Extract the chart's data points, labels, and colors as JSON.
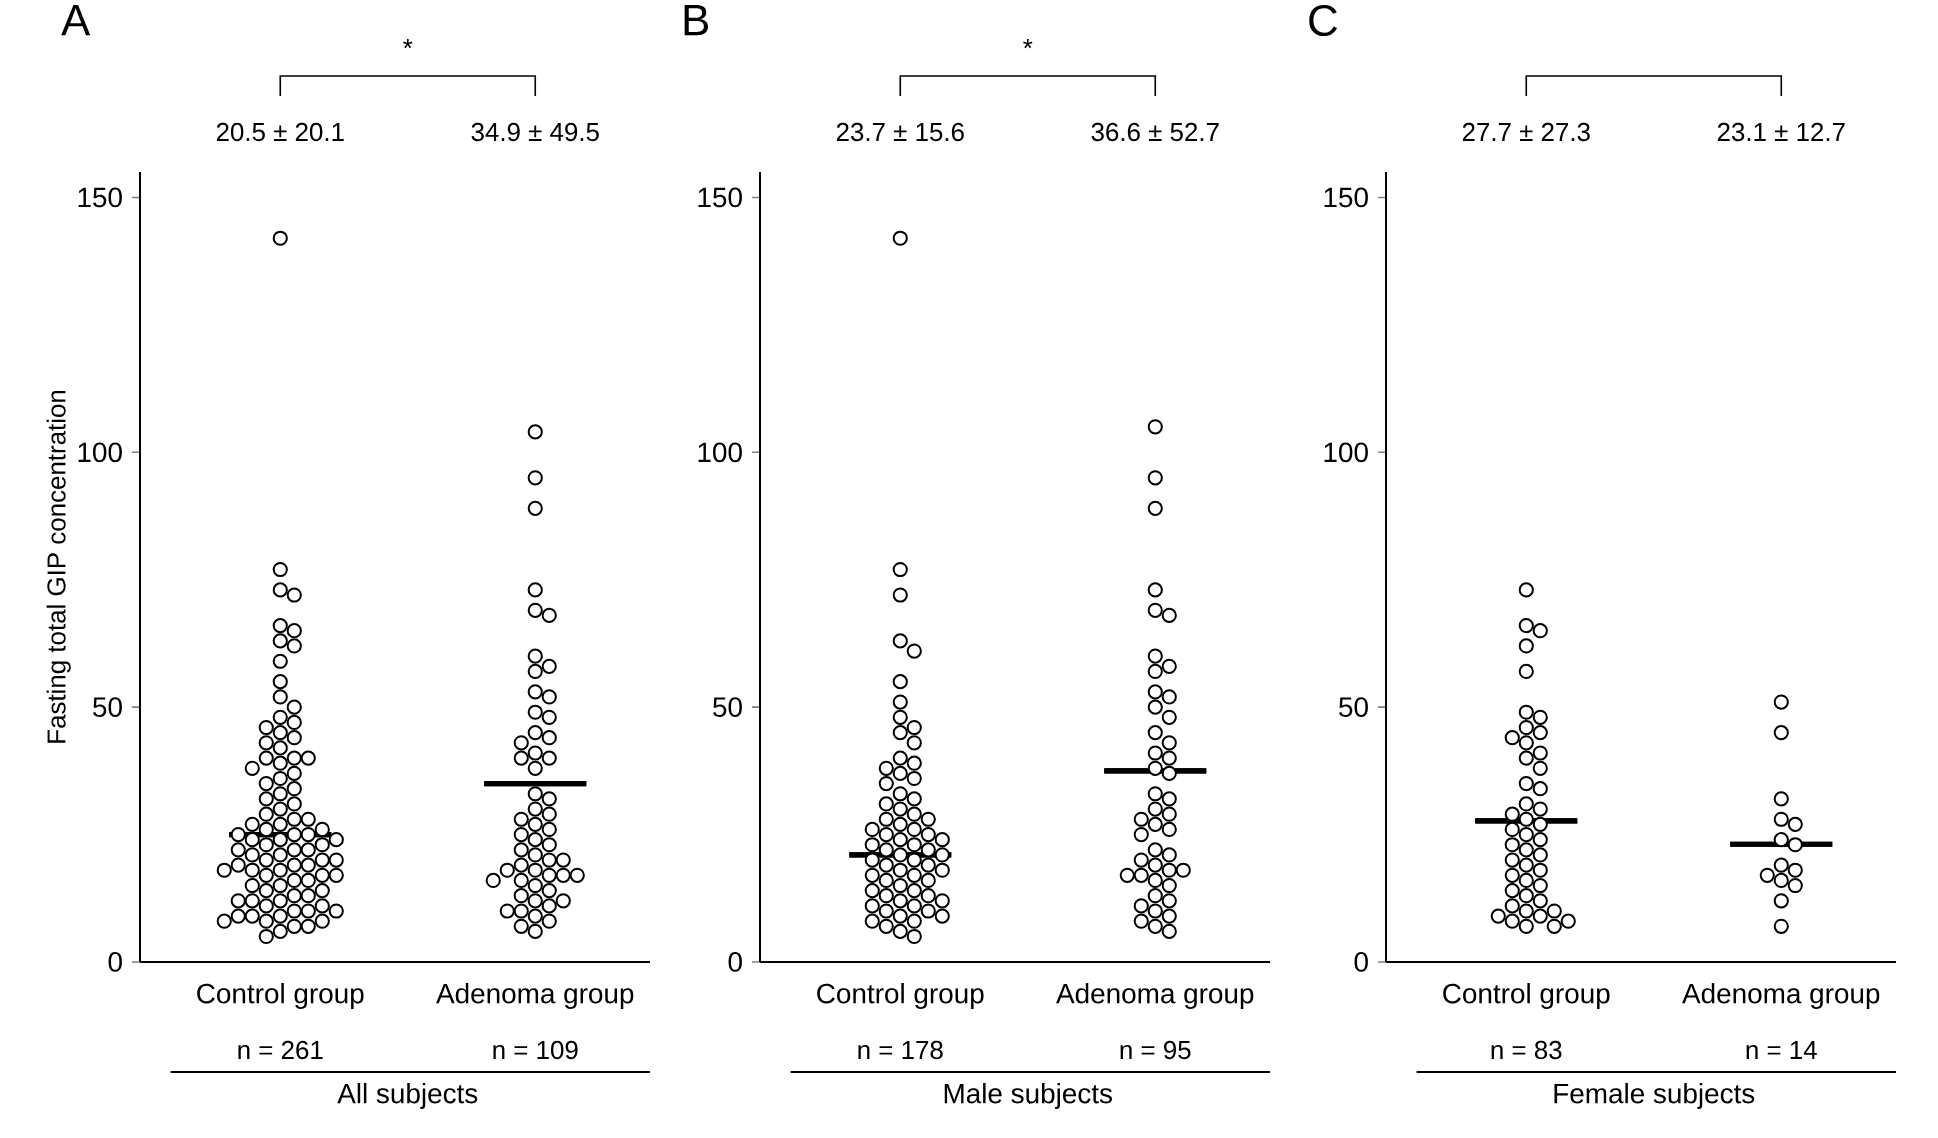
{
  "chart_data": [
    {
      "type": "scatter",
      "ylabel": "Fasting total GIP concentration",
      "categories": [
        "Control group",
        "Adenoma group"
      ],
      "ylim": [
        0,
        155
      ],
      "yticks": [
        0,
        50,
        100,
        150
      ],
      "marker": "circle",
      "annotations": [
        "A",
        "20.5 ± 20.1",
        "34.9 ± 49.5",
        "n = 261",
        "n = 109",
        "All subjects",
        "*"
      ],
      "series": [
        {
          "type": "scatter",
          "color": "#000000",
          "x": [
            "Control group",
            "Control group",
            "Control group",
            "Control group",
            "Control group",
            "Control group",
            "Control group",
            "Control group",
            "Control group",
            "Control group",
            "Control group",
            "Control group",
            "Control group",
            "Control group",
            "Control group",
            "Control group",
            "Control group",
            "Control group",
            "Control group",
            "Control group",
            "Control group",
            "Control group",
            "Control group",
            "Control group",
            "Control group",
            "Control group",
            "Control group",
            "Control group",
            "Control group",
            "Control group",
            "Control group",
            "Control group",
            "Control group",
            "Control group",
            "Control group",
            "Control group",
            "Control group",
            "Control group",
            "Control group",
            "Control group",
            "Control group",
            "Control group",
            "Control group",
            "Control group",
            "Control group",
            "Control group",
            "Control group",
            "Control group",
            "Control group",
            "Control group",
            "Control group",
            "Control group",
            "Control group",
            "Control group",
            "Control group",
            "Control group",
            "Control group",
            "Control group",
            "Control group",
            "Control group",
            "Control group",
            "Control group",
            "Control group",
            "Control group",
            "Control group",
            "Control group",
            "Control group",
            "Control group",
            "Control group",
            "Control group",
            "Control group",
            "Control group",
            "Control group",
            "Control group",
            "Control group",
            "Control group",
            "Control group",
            "Control group",
            "Control group",
            "Control group",
            "Control group",
            "Control group",
            "Control group",
            "Control group",
            "Control group",
            "Control group",
            "Control group",
            "Control group",
            "Control group",
            "Control group",
            "Adenoma group",
            "Adenoma group",
            "Adenoma group",
            "Adenoma group",
            "Adenoma group",
            "Adenoma group",
            "Adenoma group",
            "Adenoma group",
            "Adenoma group",
            "Adenoma group",
            "Adenoma group",
            "Adenoma group",
            "Adenoma group",
            "Adenoma group",
            "Adenoma group",
            "Adenoma group",
            "Adenoma group",
            "Adenoma group",
            "Adenoma group",
            "Adenoma group",
            "Adenoma group",
            "Adenoma group",
            "Adenoma group",
            "Adenoma group",
            "Adenoma group",
            "Adenoma group",
            "Adenoma group",
            "Adenoma group",
            "Adenoma group",
            "Adenoma group",
            "Adenoma group",
            "Adenoma group",
            "Adenoma group",
            "Adenoma group",
            "Adenoma group",
            "Adenoma group",
            "Adenoma group",
            "Adenoma group",
            "Adenoma group",
            "Adenoma group",
            "Adenoma group",
            "Adenoma group",
            "Adenoma group",
            "Adenoma group",
            "Adenoma group",
            "Adenoma group",
            "Adenoma group",
            "Adenoma group",
            "Adenoma group",
            "Adenoma group",
            "Adenoma group",
            "Adenoma group",
            "Adenoma group",
            "Adenoma group"
          ],
          "values": [
            142,
            77,
            73,
            72,
            66,
            65,
            63,
            62,
            59,
            55,
            52,
            50,
            48,
            47,
            46,
            45,
            44,
            43,
            42,
            40,
            40,
            40,
            39,
            38,
            37,
            36,
            35,
            34,
            33,
            32,
            31,
            30,
            29,
            28,
            28,
            27,
            27,
            26,
            26,
            25,
            25,
            25,
            24,
            24,
            24,
            23,
            23,
            22,
            22,
            22,
            21,
            21,
            20,
            20,
            20,
            19,
            19,
            19,
            18,
            18,
            18,
            17,
            17,
            17,
            16,
            16,
            15,
            15,
            14,
            14,
            13,
            13,
            12,
            12,
            12,
            11,
            11,
            10,
            10,
            10,
            9,
            9,
            9,
            8,
            8,
            8,
            7,
            7,
            6,
            5,
            104,
            95,
            89,
            73,
            69,
            68,
            60,
            58,
            57,
            53,
            52,
            49,
            48,
            45,
            44,
            43,
            41,
            40,
            40,
            38,
            33,
            32,
            30,
            29,
            28,
            27,
            26,
            25,
            24,
            23,
            22,
            21,
            20,
            20,
            19,
            18,
            18,
            17,
            17,
            17,
            16,
            16,
            15,
            14,
            13,
            12,
            12,
            11,
            10,
            10,
            9,
            8,
            7,
            6
          ]
        },
        {
          "type": "box",
          "color": "#000000",
          "boxes": [
            {
              "low": 25,
              "q1": 25,
              "median": 25,
              "q3": 25,
              "high": 25
            },
            {
              "low": 35,
              "q1": 35,
              "median": 35,
              "q3": 35,
              "high": 35
            }
          ]
        }
      ]
    },
    {
      "type": "scatter",
      "categories": [
        "Control group",
        "Adenoma group"
      ],
      "ylim": [
        0,
        155
      ],
      "yticks": [
        0,
        50,
        100,
        150
      ],
      "marker": "circle",
      "annotations": [
        "B",
        "23.7 ± 15.6",
        "36.6 ± 52.7",
        "n = 178",
        "n = 95",
        "Male subjects",
        "*"
      ],
      "series": [
        {
          "type": "scatter",
          "color": "#000000",
          "x": [
            "Control group",
            "Control group",
            "Control group",
            "Control group",
            "Control group",
            "Control group",
            "Control group",
            "Control group",
            "Control group",
            "Control group",
            "Control group",
            "Control group",
            "Control group",
            "Control group",
            "Control group",
            "Control group",
            "Control group",
            "Control group",
            "Control group",
            "Control group",
            "Control group",
            "Control group",
            "Control group",
            "Control group",
            "Control group",
            "Control group",
            "Control group",
            "Control group",
            "Control group",
            "Control group",
            "Control group",
            "Control group",
            "Control group",
            "Control group",
            "Control group",
            "Control group",
            "Control group",
            "Control group",
            "Control group",
            "Control group",
            "Control group",
            "Control group",
            "Control group",
            "Control group",
            "Control group",
            "Control group",
            "Control group",
            "Control group",
            "Control group",
            "Control group",
            "Control group",
            "Control group",
            "Control group",
            "Control group",
            "Control group",
            "Control group",
            "Control group",
            "Control group",
            "Control group",
            "Control group",
            "Control group",
            "Control group",
            "Control group",
            "Control group",
            "Control group",
            "Adenoma group",
            "Adenoma group",
            "Adenoma group",
            "Adenoma group",
            "Adenoma group",
            "Adenoma group",
            "Adenoma group",
            "Adenoma group",
            "Adenoma group",
            "Adenoma group",
            "Adenoma group",
            "Adenoma group",
            "Adenoma group",
            "Adenoma group",
            "Adenoma group",
            "Adenoma group",
            "Adenoma group",
            "Adenoma group",
            "Adenoma group",
            "Adenoma group",
            "Adenoma group",
            "Adenoma group",
            "Adenoma group",
            "Adenoma group",
            "Adenoma group",
            "Adenoma group",
            "Adenoma group",
            "Adenoma group",
            "Adenoma group",
            "Adenoma group",
            "Adenoma group",
            "Adenoma group",
            "Adenoma group",
            "Adenoma group",
            "Adenoma group",
            "Adenoma group",
            "Adenoma group",
            "Adenoma group",
            "Adenoma group",
            "Adenoma group",
            "Adenoma group",
            "Adenoma group",
            "Adenoma group",
            "Adenoma group",
            "Adenoma group"
          ],
          "values": [
            142,
            77,
            72,
            63,
            61,
            55,
            51,
            48,
            46,
            45,
            43,
            40,
            39,
            38,
            37,
            36,
            35,
            33,
            32,
            31,
            30,
            29,
            28,
            28,
            27,
            26,
            26,
            25,
            25,
            24,
            24,
            23,
            23,
            22,
            22,
            21,
            21,
            20,
            20,
            19,
            19,
            18,
            18,
            17,
            17,
            16,
            16,
            15,
            14,
            14,
            13,
            13,
            12,
            12,
            11,
            11,
            10,
            10,
            9,
            9,
            8,
            8,
            7,
            6,
            5,
            105,
            95,
            89,
            73,
            69,
            68,
            60,
            58,
            57,
            53,
            52,
            50,
            48,
            45,
            43,
            41,
            40,
            38,
            37,
            33,
            32,
            30,
            29,
            28,
            27,
            26,
            25,
            22,
            21,
            20,
            19,
            18,
            18,
            17,
            17,
            16,
            15,
            13,
            12,
            11,
            10,
            9,
            8,
            7,
            6
          ]
        },
        {
          "type": "box",
          "color": "#000000",
          "boxes": [
            {
              "low": 21,
              "q1": 21,
              "median": 21,
              "q3": 21,
              "high": 21
            },
            {
              "low": 37.5,
              "q1": 37.5,
              "median": 37.5,
              "q3": 37.5,
              "high": 37.5
            }
          ]
        }
      ]
    },
    {
      "type": "scatter",
      "categories": [
        "Control group",
        "Adenoma group"
      ],
      "ylim": [
        0,
        155
      ],
      "yticks": [
        0,
        50,
        100,
        150
      ],
      "marker": "circle",
      "annotations": [
        "C",
        "27.7 ± 27.3",
        "23.1 ± 12.7",
        "n = 83",
        "n = 14",
        "Female subjects"
      ],
      "series": [
        {
          "type": "scatter",
          "color": "#000000",
          "x": [
            "Control group",
            "Control group",
            "Control group",
            "Control group",
            "Control group",
            "Control group",
            "Control group",
            "Control group",
            "Control group",
            "Control group",
            "Control group",
            "Control group",
            "Control group",
            "Control group",
            "Control group",
            "Control group",
            "Control group",
            "Control group",
            "Control group",
            "Control group",
            "Control group",
            "Control group",
            "Control group",
            "Control group",
            "Control group",
            "Control group",
            "Control group",
            "Control group",
            "Control group",
            "Control group",
            "Control group",
            "Control group",
            "Control group",
            "Control group",
            "Control group",
            "Control group",
            "Control group",
            "Control group",
            "Control group",
            "Control group",
            "Control group",
            "Control group",
            "Control group",
            "Control group",
            "Control group",
            "Adenoma group",
            "Adenoma group",
            "Adenoma group",
            "Adenoma group",
            "Adenoma group",
            "Adenoma group",
            "Adenoma group",
            "Adenoma group",
            "Adenoma group",
            "Adenoma group",
            "Adenoma group",
            "Adenoma group",
            "Adenoma group",
            "Adenoma group"
          ],
          "values": [
            73,
            66,
            65,
            62,
            57,
            49,
            48,
            46,
            45,
            44,
            43,
            41,
            40,
            38,
            35,
            34,
            31,
            30,
            29,
            28,
            27,
            26,
            25,
            24,
            23,
            22,
            21,
            20,
            19,
            18,
            17,
            16,
            15,
            14,
            13,
            12,
            11,
            10,
            10,
            9,
            9,
            8,
            8,
            7,
            7,
            51,
            45,
            32,
            28,
            27,
            24,
            23,
            19,
            18,
            17,
            16,
            15,
            12,
            7
          ]
        },
        {
          "type": "box",
          "color": "#000000",
          "boxes": [
            {
              "low": 27.7,
              "q1": 27.7,
              "median": 27.7,
              "q3": 27.7,
              "high": 27.7
            },
            {
              "low": 23.1,
              "q1": 23.1,
              "median": 23.1,
              "q3": 23.1,
              "high": 23.1
            }
          ]
        }
      ]
    }
  ]
}
